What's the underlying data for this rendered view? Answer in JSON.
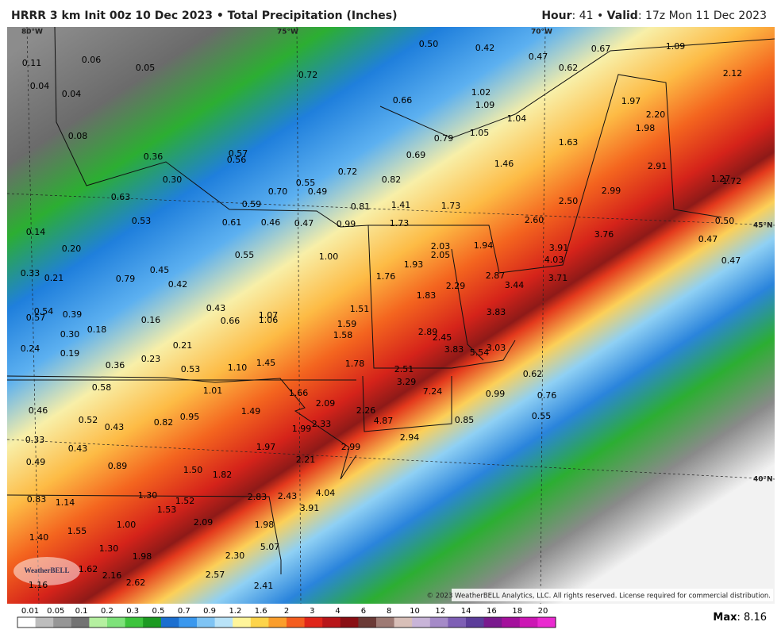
{
  "header": {
    "title": "HRRR 3 km Init 00z 10 Dec 2023 • Total Precipitation (Inches)",
    "hour_label": "Hour",
    "hour": ": 41 • ",
    "valid_label": "Valid",
    "valid": ": 17z Mon 11 Dec 2023"
  },
  "geo_labels": [
    "80°W",
    "75°W",
    "70°W",
    "45°N",
    "40°N"
  ],
  "map_labels": [
    "0.11",
    "0.06",
    "0.05",
    "0.04",
    "0.04",
    "0.72",
    "0.50",
    "0.42",
    "0.47",
    "0.67",
    "1.09",
    "0.62",
    "2.12",
    "0.66",
    "1.02",
    "1.09",
    "1.04",
    "1.97",
    "2.20",
    "1.98",
    "0.08",
    "0.36",
    "0.57",
    "0.56",
    "1.05",
    "0.79",
    "0.69",
    "1.63",
    "1.46",
    "2.91",
    "0.30",
    "0.72",
    "0.55",
    "0.82",
    "0.70",
    "0.49",
    "1.27",
    "1.72",
    "2.99",
    "2.50",
    "0.63",
    "0.59",
    "0.81",
    "1.41",
    "1.73",
    "0.53",
    "0.61",
    "0.46",
    "0.47",
    "0.99",
    "1.73",
    "2.60",
    "0.50",
    "0.14",
    "0.47",
    "3.76",
    "0.20",
    "2.03",
    "2.05",
    "1.94",
    "3.91",
    "0.55",
    "1.00",
    "4.03",
    "0.47",
    "0.33",
    "0.21",
    "1.93",
    "0.79",
    "0.45",
    "0.42",
    "1.76",
    "2.87",
    "3.71",
    "2.29",
    "3.44",
    "1.83",
    "0.43",
    "1.51",
    "3.83",
    "0.54",
    "0.57",
    "0.39",
    "0.16",
    "1.07",
    "1.06",
    "0.66",
    "1.59",
    "0.30",
    "0.18",
    "1.58",
    "2.89",
    "2.45",
    "0.24",
    "0.21",
    "0.19",
    "3.83",
    "5.54",
    "3.03",
    "0.36",
    "0.23",
    "0.53",
    "1.10",
    "1.45",
    "1.78",
    "2.51",
    "0.62",
    "3.29",
    "0.58",
    "1.01",
    "7.24",
    "1.66",
    "0.99",
    "0.76",
    "0.46",
    "1.49",
    "2.09",
    "2.26",
    "0.95",
    "0.82",
    "0.52",
    "0.43",
    "4.87",
    "0.85",
    "0.55",
    "1.99",
    "2.33",
    "2.94",
    "0.33",
    "0.43",
    "1.97",
    "2.99",
    "2.21",
    "0.49",
    "0.89",
    "1.50",
    "1.82",
    "0.83",
    "1.14",
    "1.30",
    "1.52",
    "2.83",
    "2.43",
    "4.04",
    "1.53",
    "3.91",
    "1.00",
    "2.09",
    "1.98",
    "1.55",
    "1.40",
    "5.07",
    "1.30",
    "1.98",
    "2.30",
    "1.62",
    "2.16",
    "2.57",
    "2.62",
    "1.16",
    "2.41"
  ],
  "logo": "WeatherBELL",
  "copyright": "© 2023 WeatherBELL Analytics, LLC. All rights reserved. License required for commercial distribution.",
  "colorbar": {
    "ticks": [
      "0.01",
      "0.05",
      "0.1",
      "0.2",
      "0.3",
      "0.5",
      "0.7",
      "0.9",
      "1.2",
      "1.6",
      "2",
      "3",
      "4",
      "6",
      "8",
      "10",
      "12",
      "14",
      "16",
      "18",
      "20"
    ],
    "colors": [
      "#ffffff",
      "#bdbdbd",
      "#969696",
      "#737373",
      "#b5f0a0",
      "#7ee27a",
      "#3cc43c",
      "#1c9a22",
      "#1b6fd0",
      "#3a98ee",
      "#7fc4f4",
      "#b9e3f8",
      "#fff59a",
      "#fdd44a",
      "#fb9e2c",
      "#f45d1f",
      "#e0251a",
      "#b8161a",
      "#8a0f14",
      "#6b3a36",
      "#9e7a74",
      "#d8bfb8",
      "#c8b4d8",
      "#a58ac8",
      "#7e5fb5",
      "#5c3d9a",
      "#7a1a8e",
      "#a4119c",
      "#cc17b4",
      "#ea2ad0"
    ]
  },
  "max_label": "Max",
  "max_value": ": 8.16"
}
